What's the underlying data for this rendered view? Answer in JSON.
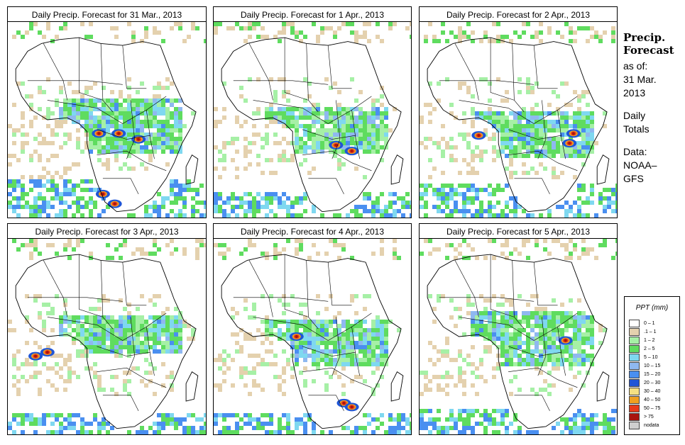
{
  "panels": [
    {
      "title": "Daily Precip. Forecast for  31 Mar., 2013",
      "variant": 0
    },
    {
      "title": "Daily Precip. Forecast for  1 Apr., 2013",
      "variant": 1
    },
    {
      "title": "Daily Precip. Forecast for  2 Apr., 2013",
      "variant": 2
    },
    {
      "title": "Daily Precip. Forecast for  3 Apr., 2013",
      "variant": 3
    },
    {
      "title": "Daily Precip. Forecast for  4 Apr., 2013",
      "variant": 4
    },
    {
      "title": "Daily Precip. Forecast for  5 Apr., 2013",
      "variant": 5
    }
  ],
  "sidebar": {
    "heading1": "Precip.",
    "heading2": "Forecast",
    "line1": "as of:",
    "line2": "31 Mar.",
    "line3": "2013",
    "line4": "Daily",
    "line5": "Totals",
    "line6": "Data:",
    "line7": "NOAA–",
    "line8": "GFS"
  },
  "legend": {
    "title": "PPT (mm)",
    "items": [
      {
        "label": "0 – 1",
        "color": "#ffffff"
      },
      {
        "label": ".1 – 1",
        "color": "#e4d1ae"
      },
      {
        "label": "1 – 2",
        "color": "#a6f0a6"
      },
      {
        "label": "2 – 5",
        "color": "#5fdc5f"
      },
      {
        "label": "5 – 10",
        "color": "#7fd8f0"
      },
      {
        "label": "10 – 15",
        "color": "#8fb8f0"
      },
      {
        "label": "15 – 20",
        "color": "#4a8ff0"
      },
      {
        "label": "20 – 30",
        "color": "#1f55d6"
      },
      {
        "label": "30 – 40",
        "color": "#f5e082"
      },
      {
        "label": "40 – 50",
        "color": "#f0a020"
      },
      {
        "label": "50 – 75",
        "color": "#e83a1a"
      },
      {
        "label": "> 75",
        "color": "#a8140e"
      },
      {
        "label": "nodata",
        "color": "#cfcfcf"
      }
    ]
  }
}
